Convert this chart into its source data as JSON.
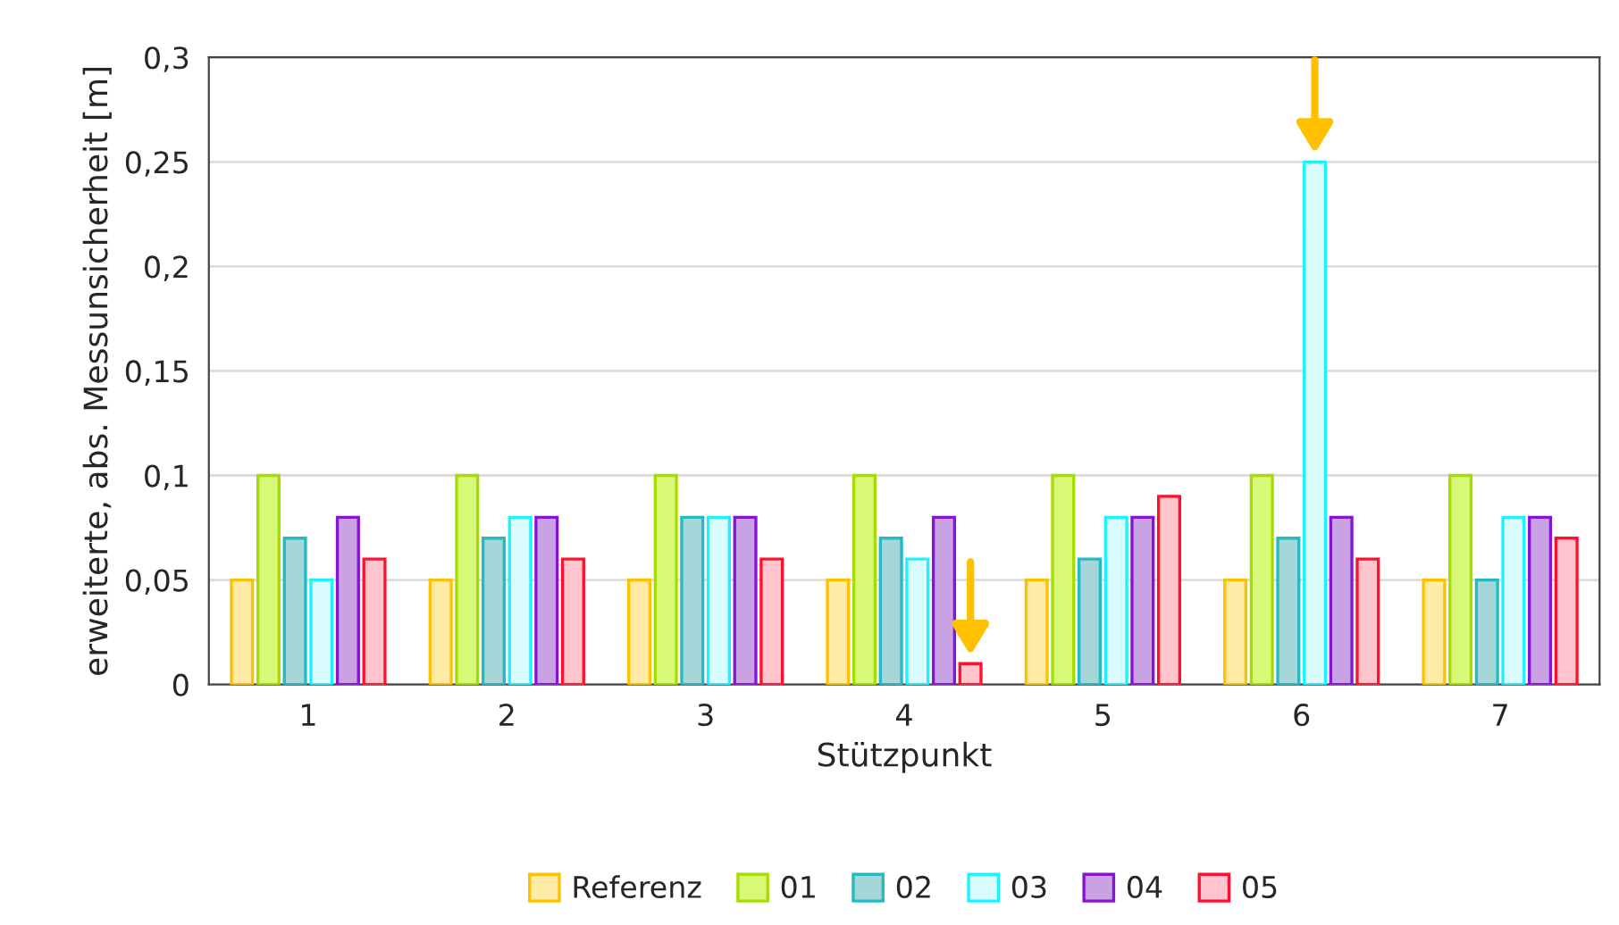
{
  "chart_data": {
    "type": "bar",
    "xlabel": "Stützpunkt",
    "ylabel": "erweiterte, abs. Messunsicherheit [m]",
    "categories": [
      "1",
      "2",
      "3",
      "4",
      "5",
      "6",
      "7"
    ],
    "series": [
      {
        "name": "Referenz",
        "color": "#ffeaa6",
        "values": [
          0.05,
          0.05,
          0.05,
          0.05,
          0.05,
          0.05,
          0.05
        ]
      },
      {
        "name": "01",
        "color": "#d8f878",
        "values": [
          0.1,
          0.1,
          0.1,
          0.1,
          0.1,
          0.1,
          0.1
        ]
      },
      {
        "name": "02",
        "color": "#a6d6d8",
        "values": [
          0.07,
          0.07,
          0.08,
          0.07,
          0.06,
          0.07,
          0.05
        ]
      },
      {
        "name": "03",
        "color": "#d9fdff",
        "values": [
          0.05,
          0.08,
          0.08,
          0.06,
          0.08,
          0.25,
          0.08
        ]
      },
      {
        "name": "04",
        "color": "#c8a2e2",
        "values": [
          0.08,
          0.08,
          0.08,
          0.08,
          0.08,
          0.08,
          0.08
        ]
      },
      {
        "name": "05",
        "color": "#ffc4cc",
        "values": [
          0.06,
          0.06,
          0.06,
          0.01,
          0.09,
          0.06,
          0.07
        ]
      }
    ],
    "ylim": [
      0,
      0.3
    ],
    "yticks": [
      0,
      {
        "value": 0.05,
        "label": "0,05"
      },
      {
        "value": 0.1,
        "label": "0,1"
      },
      {
        "value": 0.15,
        "label": "0,15"
      },
      {
        "value": 0.2,
        "label": "0,2"
      },
      {
        "value": 0.25,
        "label": "0,25"
      },
      {
        "value": 0.3,
        "label": "0,3"
      }
    ],
    "grid": "y",
    "legend": "bottom"
  }
}
